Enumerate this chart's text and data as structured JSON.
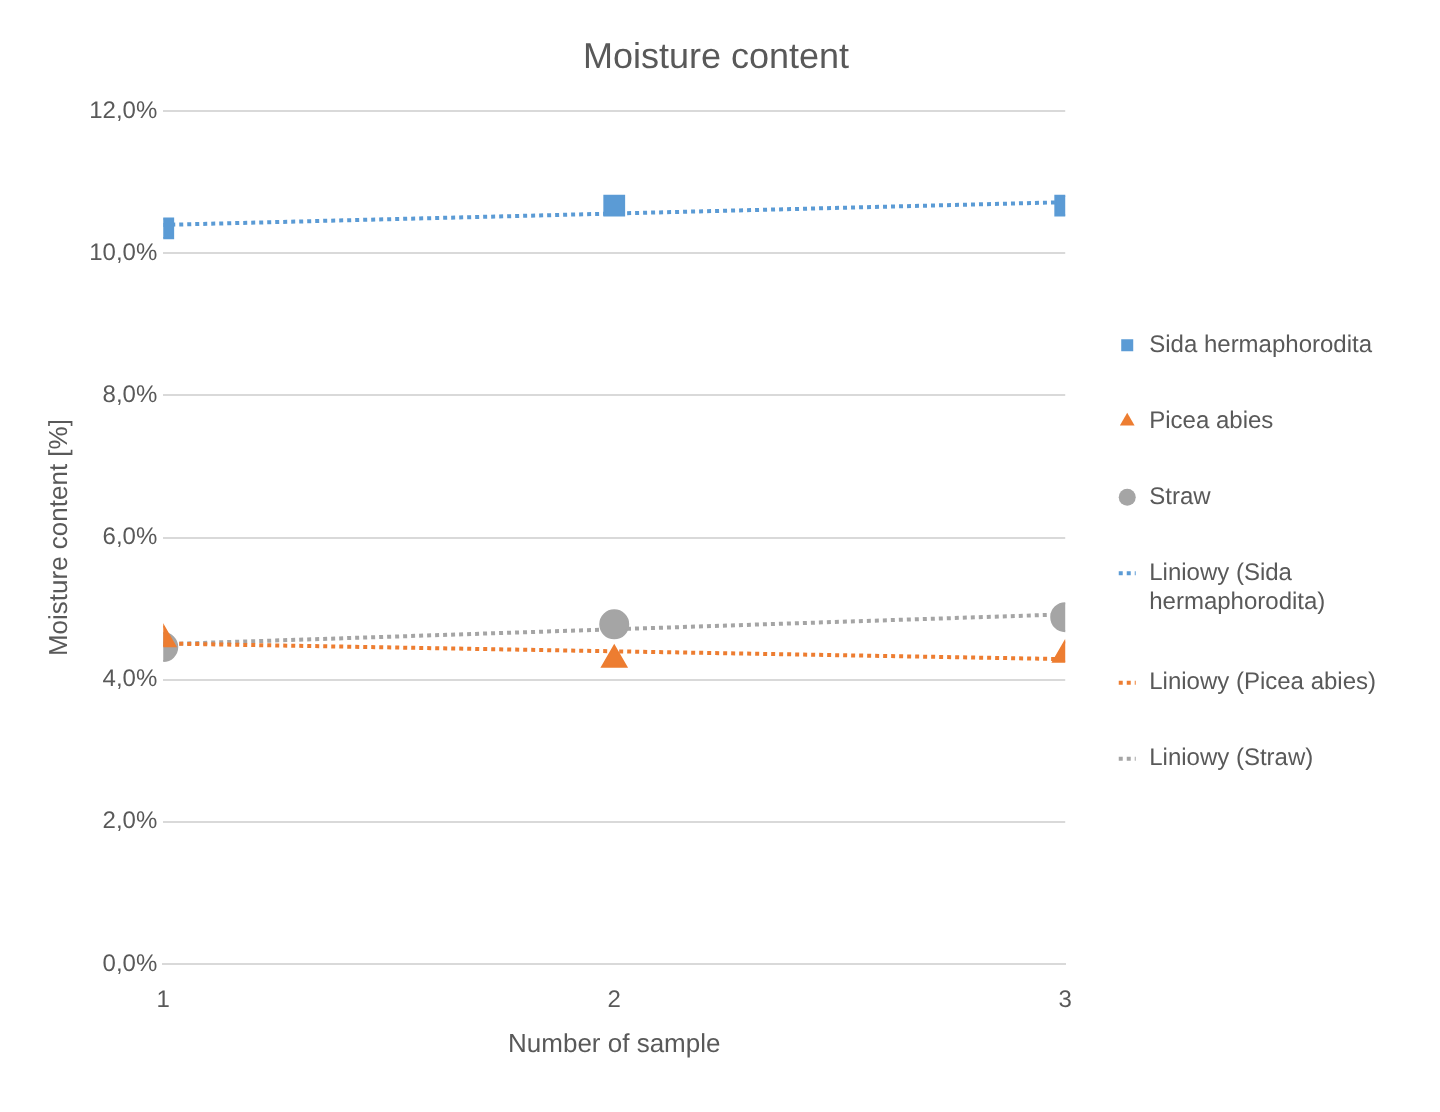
{
  "chart_data": {
    "type": "scatter",
    "title": "Moisture content",
    "xlabel": "Number of sample",
    "ylabel": "Moisture content [%]",
    "xlim": [
      1,
      3
    ],
    "xticks": [
      1,
      2,
      3
    ],
    "ylim": [
      0,
      12
    ],
    "yticks": [
      {
        "value": 0,
        "label": "0,0%"
      },
      {
        "value": 2,
        "label": "2,0%"
      },
      {
        "value": 4,
        "label": "4,0%"
      },
      {
        "value": 6,
        "label": "6,0%"
      },
      {
        "value": 8,
        "label": "8,0%"
      },
      {
        "value": 10,
        "label": "10,0%"
      },
      {
        "value": 12,
        "label": "12,0%"
      }
    ],
    "grid": "y",
    "legend": "right",
    "series": [
      {
        "name": "Sida hermaphorodita",
        "marker": "square",
        "color": "#5b9bd5",
        "x": [
          1,
          2,
          3
        ],
        "values": [
          10.35,
          10.67,
          10.67
        ]
      },
      {
        "name": "Picea abies",
        "marker": "triangle",
        "color": "#ed7d31",
        "x": [
          1,
          2,
          3
        ],
        "values": [
          4.57,
          4.28,
          4.35
        ]
      },
      {
        "name": "Straw",
        "marker": "circle",
        "color": "#a5a5a5",
        "x": [
          1,
          2,
          3
        ],
        "values": [
          4.46,
          4.78,
          4.88
        ]
      },
      {
        "name": "Liniowy (Sida hermaphorodita)",
        "type": "line",
        "marker": "none",
        "line_style": "dotted",
        "color": "#5b9bd5",
        "x": [
          1,
          3
        ],
        "values": [
          10.4,
          10.72
        ]
      },
      {
        "name": "Liniowy (Picea abies)",
        "type": "line",
        "marker": "none",
        "line_style": "dotted",
        "color": "#ed7d31",
        "x": [
          1,
          3
        ],
        "values": [
          4.51,
          4.29
        ]
      },
      {
        "name": "Liniowy (Straw)",
        "type": "line",
        "marker": "none",
        "line_style": "dotted",
        "color": "#a5a5a5",
        "x": [
          1,
          3
        ],
        "values": [
          4.5,
          4.92
        ]
      }
    ]
  }
}
